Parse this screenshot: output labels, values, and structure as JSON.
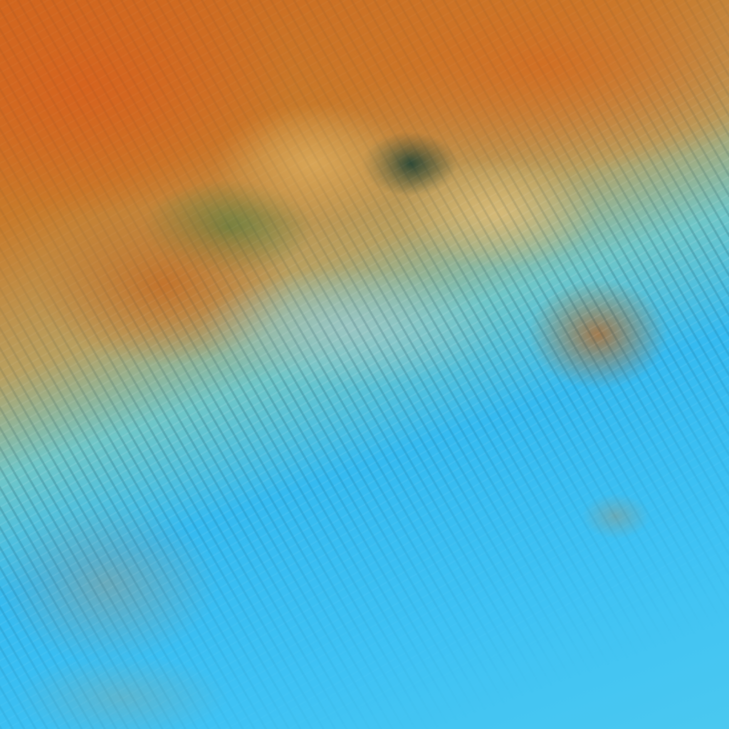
{
  "image": {
    "kind": "false-color satellite imagery",
    "colors": {
      "land": "#d0661e",
      "cloud_bright": "#e0be78",
      "vegetation_dark": "#143c32",
      "ocean": "#35baf0",
      "turbid_water": "#6eaab4"
    }
  }
}
